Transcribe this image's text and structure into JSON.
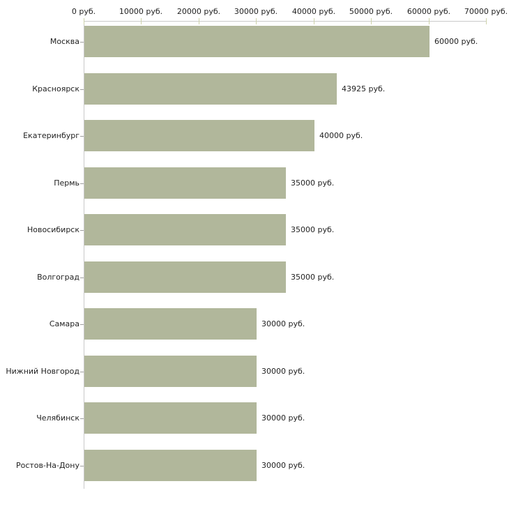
{
  "chart_data": {
    "type": "bar",
    "orientation": "horizontal",
    "title": "",
    "categories": [
      "Москва",
      "Красноярск",
      "Екатеринбург",
      "Пермь",
      "Новосибирск",
      "Волгоград",
      "Самара",
      "Нижний Новгород",
      "Челябинск",
      "Ростов-На-Дону"
    ],
    "values": [
      60000,
      43925,
      40000,
      35000,
      35000,
      35000,
      30000,
      30000,
      30000,
      30000
    ],
    "value_labels": [
      "60000 руб.",
      "43925 руб.",
      "40000 руб.",
      "35000 руб.",
      "35000 руб.",
      "35000 руб.",
      "30000 руб.",
      "30000 руб.",
      "30000 руб.",
      "30000 руб."
    ],
    "xlabel": "",
    "ylabel": "",
    "xlim": [
      0,
      70000
    ],
    "x_ticks": [
      0,
      10000,
      20000,
      30000,
      40000,
      50000,
      60000,
      70000
    ],
    "x_tick_labels": [
      "0 руб.",
      "10000 руб.",
      "20000 руб.",
      "30000 руб.",
      "40000 руб.",
      "50000 руб.",
      "60000 руб.",
      "70000 руб."
    ],
    "unit": "руб.",
    "grid": false,
    "legend": null,
    "colors": {
      "bar": "#b1b79b",
      "axis_line": "#c9c9c9",
      "axis_tick": "#ced3ab",
      "category_tick": "#9e9e9e",
      "text": "#222222",
      "background": "#ffffff"
    }
  }
}
